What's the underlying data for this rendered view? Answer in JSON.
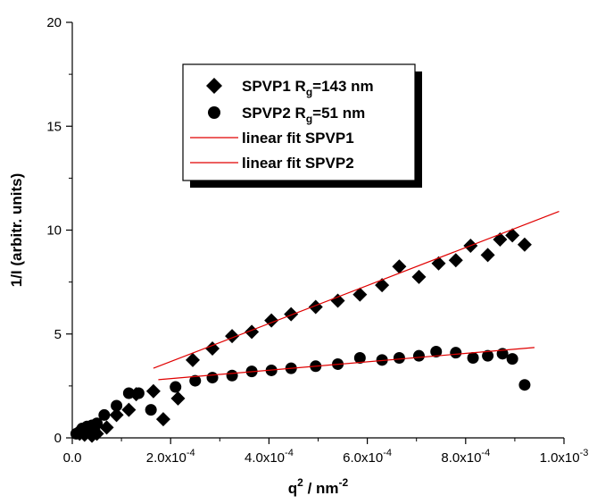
{
  "chart_data": {
    "type": "scatter",
    "xlabel": {
      "base": "q",
      "sup": "2",
      "rest": " / nm",
      "unit_sup": "-2"
    },
    "ylabel": "1/I (arbitr. units)",
    "xlim": [
      0,
      0.001
    ],
    "ylim": [
      0,
      20
    ],
    "x_ticks": [
      {
        "value": 0,
        "base": "0.0",
        "exp": ""
      },
      {
        "value": 0.0002,
        "base": "2.0x10",
        "exp": "-4"
      },
      {
        "value": 0.0004,
        "base": "4.0x10",
        "exp": "-4"
      },
      {
        "value": 0.0006,
        "base": "6.0x10",
        "exp": "-4"
      },
      {
        "value": 0.0008,
        "base": "8.0x10",
        "exp": "-4"
      },
      {
        "value": 0.001,
        "base": "1.0x10",
        "exp": "-3"
      }
    ],
    "y_ticks": [
      0,
      5,
      10,
      15,
      20
    ],
    "legend_position": "top-left",
    "series": [
      {
        "name": "SPVP1 R",
        "name_sub": "g",
        "name_rest": "=143 nm",
        "marker": "diamond",
        "color": "#000000",
        "points": [
          [
            1.5e-05,
            0.2
          ],
          [
            2e-05,
            0.3
          ],
          [
            2.5e-05,
            0.15
          ],
          [
            3e-05,
            0.35
          ],
          [
            3.5e-05,
            0.25
          ],
          [
            4e-05,
            0.1
          ],
          [
            4.5e-05,
            0.3
          ],
          [
            5e-05,
            0.2
          ],
          [
            7e-05,
            0.5
          ],
          [
            9e-05,
            1.1
          ],
          [
            0.000115,
            1.35
          ],
          [
            0.00013,
            2.1
          ],
          [
            0.000165,
            2.25
          ],
          [
            0.000185,
            0.9
          ],
          [
            0.000215,
            1.9
          ],
          [
            0.000245,
            3.75
          ],
          [
            0.000285,
            4.3
          ],
          [
            0.000325,
            4.9
          ],
          [
            0.000365,
            5.1
          ],
          [
            0.000405,
            5.65
          ],
          [
            0.000445,
            5.95
          ],
          [
            0.000495,
            6.3
          ],
          [
            0.00054,
            6.6
          ],
          [
            0.000585,
            6.9
          ],
          [
            0.00063,
            7.35
          ],
          [
            0.000665,
            8.25
          ],
          [
            0.000705,
            7.75
          ],
          [
            0.000745,
            8.4
          ],
          [
            0.00078,
            8.55
          ],
          [
            0.00081,
            9.25
          ],
          [
            0.000845,
            8.8
          ],
          [
            0.00087,
            9.55
          ],
          [
            0.000895,
            9.75
          ],
          [
            0.00092,
            9.3
          ]
        ]
      },
      {
        "name": "SPVP2 R",
        "name_sub": "g",
        "name_rest": "=51 nm",
        "marker": "circle",
        "color": "#000000",
        "points": [
          [
            8e-06,
            0.2
          ],
          [
            1.5e-05,
            0.3
          ],
          [
            2e-05,
            0.45
          ],
          [
            2.5e-05,
            0.35
          ],
          [
            3e-05,
            0.55
          ],
          [
            4e-05,
            0.6
          ],
          [
            4.5e-05,
            0.4
          ],
          [
            5e-05,
            0.7
          ],
          [
            6.5e-05,
            1.1
          ],
          [
            9e-05,
            1.55
          ],
          [
            0.000115,
            2.15
          ],
          [
            0.000135,
            2.15
          ],
          [
            0.00016,
            1.35
          ],
          [
            0.00021,
            2.45
          ],
          [
            0.00025,
            2.75
          ],
          [
            0.000285,
            2.9
          ],
          [
            0.000325,
            3.0
          ],
          [
            0.000365,
            3.2
          ],
          [
            0.000405,
            3.25
          ],
          [
            0.000445,
            3.35
          ],
          [
            0.000495,
            3.45
          ],
          [
            0.00054,
            3.55
          ],
          [
            0.000585,
            3.85
          ],
          [
            0.00063,
            3.75
          ],
          [
            0.000665,
            3.85
          ],
          [
            0.000705,
            3.95
          ],
          [
            0.00074,
            4.15
          ],
          [
            0.00078,
            4.1
          ],
          [
            0.000815,
            3.85
          ],
          [
            0.000845,
            3.95
          ],
          [
            0.000875,
            4.05
          ],
          [
            0.000895,
            3.8
          ],
          [
            0.00092,
            2.55
          ]
        ]
      },
      {
        "name": "linear fit SPVP1",
        "type": "line",
        "color": "#e00000",
        "points": [
          [
            0.000165,
            3.35
          ],
          [
            0.00099,
            10.9
          ]
        ]
      },
      {
        "name": "linear fit SPVP2",
        "type": "line",
        "color": "#e00000",
        "points": [
          [
            0.000175,
            2.8
          ],
          [
            0.00094,
            4.35
          ]
        ]
      }
    ]
  }
}
